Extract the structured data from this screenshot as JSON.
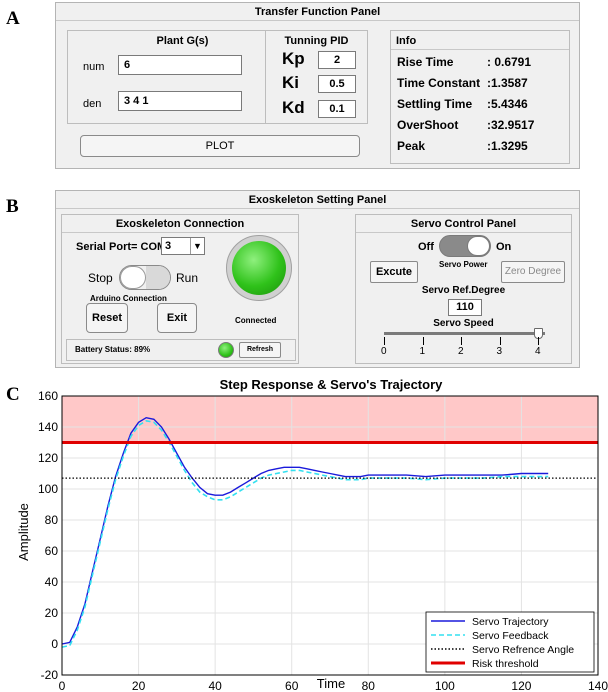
{
  "figure_letters": {
    "a": "A",
    "b": "B",
    "c": "C"
  },
  "transfer_panel": {
    "title": "Transfer Function Panel",
    "plant": {
      "title": "Plant G(s)",
      "num_label": "num",
      "num_value": "6",
      "den_label": "den",
      "den_value": "3 4 1"
    },
    "pid": {
      "title": "Tunning PID",
      "kp_label": "Kp",
      "kp_value": "2",
      "ki_label": "Ki",
      "ki_value": "0.5",
      "kd_label": "Kd",
      "kd_value": "0.1"
    },
    "info": {
      "title": "Info",
      "rows": [
        {
          "label": "Rise Time",
          "value": ": 0.6791"
        },
        {
          "label": "Time Constant",
          "value": ":1.3587"
        },
        {
          "label": "Settling Time",
          "value": ":5.4346"
        },
        {
          "label": "OverShoot",
          "value": ":32.9517"
        },
        {
          "label": "Peak",
          "value": ":1.3295"
        }
      ]
    },
    "plot_button": "PLOT"
  },
  "exo_panel": {
    "title": "Exoskeleton Setting Panel",
    "connection": {
      "title": "Exoskeleton Connection",
      "serial_label": "Serial Port= COM",
      "serial_value": "3",
      "stop_label": "Stop",
      "run_label": "Run",
      "arduino_label": "Arduino Connection",
      "reset_button": "Reset",
      "exit_button": "Exit",
      "connected_label": "Connected",
      "battery_label": "Battery Status: 89%",
      "refresh_button": "Refresh",
      "status_color": "#2fc21a"
    },
    "servo": {
      "title": "Servo Control Panel",
      "off_label": "Off",
      "on_label": "On",
      "servo_power_label": "Servo Power",
      "excute_button": "Excute",
      "zero_button": "Zero Degree",
      "ref_label": "Servo Ref.Degree",
      "ref_value": "110",
      "speed_label": "Servo Speed",
      "speed_ticks": [
        "0",
        "1",
        "2",
        "3",
        "4"
      ],
      "speed_value": 4
    }
  },
  "chart_data": {
    "type": "line",
    "title": "Step Response & Servo's Trajectory",
    "xlabel": "Time",
    "ylabel": "Amplitude",
    "xlim": [
      0,
      140
    ],
    "ylim": [
      -20,
      160
    ],
    "xticks": [
      "0",
      "20",
      "40",
      "60",
      "80",
      "100",
      "120",
      "140"
    ],
    "yticks": [
      "-20",
      "0",
      "20",
      "40",
      "60",
      "80",
      "100",
      "120",
      "140",
      "160"
    ],
    "grid": true,
    "legend_position": "bottom-right",
    "risk_zone": {
      "from": 130,
      "to": 160,
      "color": "#ffc8c8"
    },
    "series": [
      {
        "name": "Servo Trajectory",
        "color": "#1a1adb",
        "style": "solid",
        "x": [
          0,
          2,
          4,
          6,
          8,
          10,
          12,
          14,
          16,
          18,
          20,
          22,
          24,
          26,
          28,
          30,
          32,
          34,
          36,
          38,
          40,
          42,
          44,
          46,
          48,
          50,
          52,
          54,
          56,
          58,
          60,
          62,
          64,
          66,
          68,
          70,
          72,
          74,
          76,
          78,
          80,
          85,
          90,
          95,
          100,
          105,
          110,
          115,
          120,
          127
        ],
        "y": [
          0,
          1,
          11,
          26,
          47,
          68,
          89,
          108,
          123,
          136,
          143,
          146,
          145,
          140,
          132,
          123,
          114,
          107,
          101,
          97,
          96,
          96,
          98,
          101,
          104,
          107,
          110,
          112,
          113,
          114,
          114,
          114,
          113,
          112,
          111,
          110,
          109,
          108,
          108,
          108,
          109,
          109,
          109,
          108,
          109,
          109,
          109,
          109,
          110,
          110
        ]
      },
      {
        "name": "Servo Feedback",
        "color": "#33e0f0",
        "style": "dashed",
        "x": [
          0,
          2,
          4,
          6,
          8,
          10,
          12,
          14,
          16,
          18,
          20,
          22,
          24,
          26,
          28,
          30,
          32,
          34,
          36,
          38,
          40,
          42,
          44,
          46,
          48,
          50,
          52,
          54,
          56,
          58,
          60,
          62,
          64,
          66,
          68,
          70,
          72,
          74,
          76,
          78,
          80,
          85,
          90,
          95,
          100,
          105,
          110,
          115,
          120,
          127
        ],
        "y": [
          -2,
          -1,
          9,
          24,
          45,
          66,
          87,
          106,
          121,
          134,
          141,
          144,
          143,
          138,
          130,
          121,
          112,
          104,
          98,
          95,
          93,
          93,
          95,
          98,
          101,
          104,
          107,
          109,
          110,
          111,
          112,
          112,
          111,
          110,
          109,
          108,
          107,
          106,
          106,
          106,
          107,
          107,
          107,
          106,
          107,
          107,
          107,
          108,
          108,
          108
        ]
      },
      {
        "name": "Servo Refrence Angle",
        "color": "#000000",
        "style": "dotted",
        "x": [
          0,
          140
        ],
        "y": [
          107,
          107
        ]
      },
      {
        "name": "Risk threshold",
        "color": "#e00000",
        "style": "thick",
        "x": [
          0,
          140
        ],
        "y": [
          130,
          130
        ]
      }
    ]
  }
}
